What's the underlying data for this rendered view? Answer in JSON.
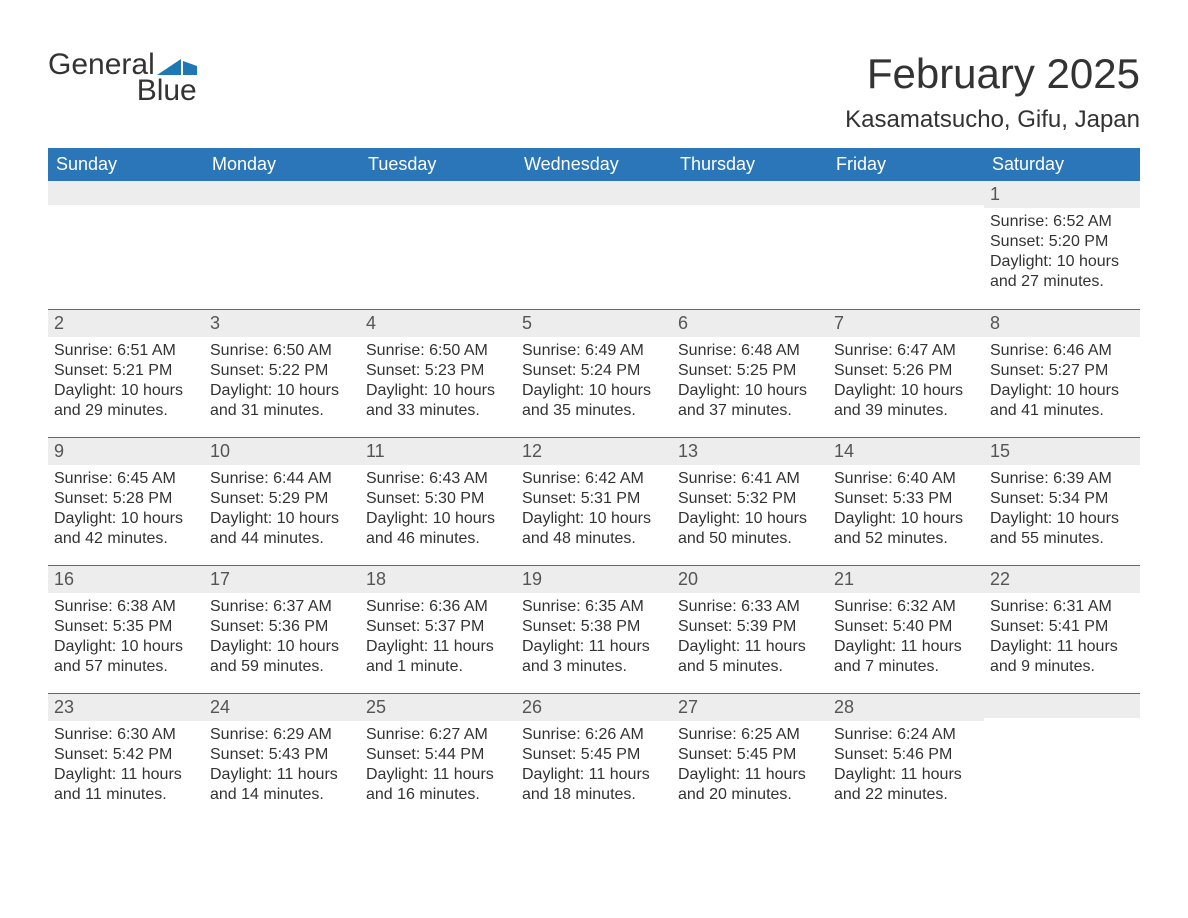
{
  "brand": {
    "word1": "General",
    "word2": "Blue",
    "word1_color": "#333333",
    "word2_color": "#1f77b4",
    "flag_color": "#1f77b4"
  },
  "title": "February 2025",
  "location": "Kasamatsucho, Gifu, Japan",
  "colors": {
    "header_bg": "#2a76b8",
    "header_text": "#ffffff",
    "daynum_bg": "#ededed",
    "cell_text": "#333333",
    "rule": "#2a76b8",
    "background": "#ffffff"
  },
  "typography": {
    "title_fontsize": 42,
    "location_fontsize": 24,
    "dayheader_fontsize": 18,
    "body_fontsize": 16,
    "logo_fontsize": 30
  },
  "day_headers": [
    "Sunday",
    "Monday",
    "Tuesday",
    "Wednesday",
    "Thursday",
    "Friday",
    "Saturday"
  ],
  "weeks": [
    [
      {
        "day": null
      },
      {
        "day": null
      },
      {
        "day": null
      },
      {
        "day": null
      },
      {
        "day": null
      },
      {
        "day": null
      },
      {
        "day": "1",
        "sunrise": "Sunrise: 6:52 AM",
        "sunset": "Sunset: 5:20 PM",
        "daylight": "Daylight: 10 hours and 27 minutes."
      }
    ],
    [
      {
        "day": "2",
        "sunrise": "Sunrise: 6:51 AM",
        "sunset": "Sunset: 5:21 PM",
        "daylight": "Daylight: 10 hours and 29 minutes."
      },
      {
        "day": "3",
        "sunrise": "Sunrise: 6:50 AM",
        "sunset": "Sunset: 5:22 PM",
        "daylight": "Daylight: 10 hours and 31 minutes."
      },
      {
        "day": "4",
        "sunrise": "Sunrise: 6:50 AM",
        "sunset": "Sunset: 5:23 PM",
        "daylight": "Daylight: 10 hours and 33 minutes."
      },
      {
        "day": "5",
        "sunrise": "Sunrise: 6:49 AM",
        "sunset": "Sunset: 5:24 PM",
        "daylight": "Daylight: 10 hours and 35 minutes."
      },
      {
        "day": "6",
        "sunrise": "Sunrise: 6:48 AM",
        "sunset": "Sunset: 5:25 PM",
        "daylight": "Daylight: 10 hours and 37 minutes."
      },
      {
        "day": "7",
        "sunrise": "Sunrise: 6:47 AM",
        "sunset": "Sunset: 5:26 PM",
        "daylight": "Daylight: 10 hours and 39 minutes."
      },
      {
        "day": "8",
        "sunrise": "Sunrise: 6:46 AM",
        "sunset": "Sunset: 5:27 PM",
        "daylight": "Daylight: 10 hours and 41 minutes."
      }
    ],
    [
      {
        "day": "9",
        "sunrise": "Sunrise: 6:45 AM",
        "sunset": "Sunset: 5:28 PM",
        "daylight": "Daylight: 10 hours and 42 minutes."
      },
      {
        "day": "10",
        "sunrise": "Sunrise: 6:44 AM",
        "sunset": "Sunset: 5:29 PM",
        "daylight": "Daylight: 10 hours and 44 minutes."
      },
      {
        "day": "11",
        "sunrise": "Sunrise: 6:43 AM",
        "sunset": "Sunset: 5:30 PM",
        "daylight": "Daylight: 10 hours and 46 minutes."
      },
      {
        "day": "12",
        "sunrise": "Sunrise: 6:42 AM",
        "sunset": "Sunset: 5:31 PM",
        "daylight": "Daylight: 10 hours and 48 minutes."
      },
      {
        "day": "13",
        "sunrise": "Sunrise: 6:41 AM",
        "sunset": "Sunset: 5:32 PM",
        "daylight": "Daylight: 10 hours and 50 minutes."
      },
      {
        "day": "14",
        "sunrise": "Sunrise: 6:40 AM",
        "sunset": "Sunset: 5:33 PM",
        "daylight": "Daylight: 10 hours and 52 minutes."
      },
      {
        "day": "15",
        "sunrise": "Sunrise: 6:39 AM",
        "sunset": "Sunset: 5:34 PM",
        "daylight": "Daylight: 10 hours and 55 minutes."
      }
    ],
    [
      {
        "day": "16",
        "sunrise": "Sunrise: 6:38 AM",
        "sunset": "Sunset: 5:35 PM",
        "daylight": "Daylight: 10 hours and 57 minutes."
      },
      {
        "day": "17",
        "sunrise": "Sunrise: 6:37 AM",
        "sunset": "Sunset: 5:36 PM",
        "daylight": "Daylight: 10 hours and 59 minutes."
      },
      {
        "day": "18",
        "sunrise": "Sunrise: 6:36 AM",
        "sunset": "Sunset: 5:37 PM",
        "daylight": "Daylight: 11 hours and 1 minute."
      },
      {
        "day": "19",
        "sunrise": "Sunrise: 6:35 AM",
        "sunset": "Sunset: 5:38 PM",
        "daylight": "Daylight: 11 hours and 3 minutes."
      },
      {
        "day": "20",
        "sunrise": "Sunrise: 6:33 AM",
        "sunset": "Sunset: 5:39 PM",
        "daylight": "Daylight: 11 hours and 5 minutes."
      },
      {
        "day": "21",
        "sunrise": "Sunrise: 6:32 AM",
        "sunset": "Sunset: 5:40 PM",
        "daylight": "Daylight: 11 hours and 7 minutes."
      },
      {
        "day": "22",
        "sunrise": "Sunrise: 6:31 AM",
        "sunset": "Sunset: 5:41 PM",
        "daylight": "Daylight: 11 hours and 9 minutes."
      }
    ],
    [
      {
        "day": "23",
        "sunrise": "Sunrise: 6:30 AM",
        "sunset": "Sunset: 5:42 PM",
        "daylight": "Daylight: 11 hours and 11 minutes."
      },
      {
        "day": "24",
        "sunrise": "Sunrise: 6:29 AM",
        "sunset": "Sunset: 5:43 PM",
        "daylight": "Daylight: 11 hours and 14 minutes."
      },
      {
        "day": "25",
        "sunrise": "Sunrise: 6:27 AM",
        "sunset": "Sunset: 5:44 PM",
        "daylight": "Daylight: 11 hours and 16 minutes."
      },
      {
        "day": "26",
        "sunrise": "Sunrise: 6:26 AM",
        "sunset": "Sunset: 5:45 PM",
        "daylight": "Daylight: 11 hours and 18 minutes."
      },
      {
        "day": "27",
        "sunrise": "Sunrise: 6:25 AM",
        "sunset": "Sunset: 5:45 PM",
        "daylight": "Daylight: 11 hours and 20 minutes."
      },
      {
        "day": "28",
        "sunrise": "Sunrise: 6:24 AM",
        "sunset": "Sunset: 5:46 PM",
        "daylight": "Daylight: 11 hours and 22 minutes."
      },
      {
        "day": null
      }
    ]
  ]
}
